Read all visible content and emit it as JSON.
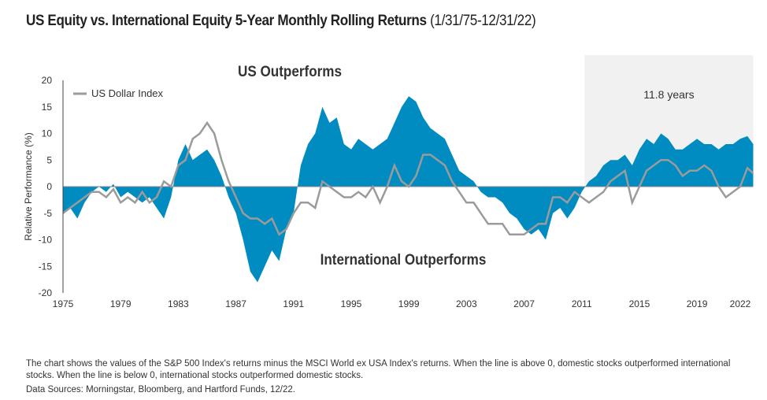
{
  "title": "US Equity vs. International Equity 5-Year Monthly Rolling Returns",
  "title_range": "(1/31/75-12/31/22)",
  "footnote": "The chart shows the values of the S&P 500 Index's returns minus the MSCI World ex USA Index's returns. When the line is above 0, domestic stocks outperformed international stocks. When the line is below 0, international stocks outperformed domestic stocks.",
  "sources": "Data Sources: Morningstar, Bloomberg, and Hartford Funds, 12/22.",
  "chart_data": {
    "type": "area",
    "ylabel": "Relative Performance (%)",
    "xlabel": "",
    "ylim": [
      -20,
      20
    ],
    "xlim": [
      1975,
      2022
    ],
    "yticks": [
      "20",
      "15",
      "10",
      "5",
      "0",
      "-5",
      "-10",
      "-15",
      "-20"
    ],
    "xticks": [
      "1975",
      "1979",
      "1983",
      "1987",
      "1991",
      "1995",
      "1999",
      "2003",
      "2007",
      "2011",
      "2015",
      "2019",
      "2022"
    ],
    "grid": false,
    "legend_position": "top-left",
    "annotations": {
      "top": "US Outperforms",
      "bottom": "International Outperforms",
      "shaded": "11.8 years"
    },
    "shaded_range": [
      2011.2,
      2022.9
    ],
    "colors": {
      "area": "#008bc1",
      "line": "#9b9b9b",
      "shade": "#f1f1f1"
    },
    "x": [
      1975,
      1975.5,
      1976,
      1976.5,
      1977,
      1977.5,
      1978,
      1978.5,
      1979,
      1979.5,
      1980,
      1980.5,
      1981,
      1981.5,
      1982,
      1982.5,
      1983,
      1983.5,
      1984,
      1984.5,
      1985,
      1985.5,
      1986,
      1986.5,
      1987,
      1987.5,
      1988,
      1988.5,
      1989,
      1989.5,
      1990,
      1990.5,
      1991,
      1991.5,
      1992,
      1992.5,
      1993,
      1993.5,
      1994,
      1994.5,
      1995,
      1995.5,
      1996,
      1996.5,
      1997,
      1997.5,
      1998,
      1998.5,
      1999,
      1999.5,
      2000,
      2000.5,
      2001,
      2001.5,
      2002,
      2002.5,
      2003,
      2003.5,
      2004,
      2004.5,
      2005,
      2005.5,
      2006,
      2006.5,
      2007,
      2007.5,
      2008,
      2008.5,
      2009,
      2009.5,
      2010,
      2010.5,
      2011,
      2011.5,
      2012,
      2012.5,
      2013,
      2013.5,
      2014,
      2014.5,
      2015,
      2015.5,
      2016,
      2016.5,
      2017,
      2017.5,
      2018,
      2018.5,
      2019,
      2019.5,
      2020,
      2020.5,
      2021,
      2021.5,
      2022,
      2022.5,
      2022.9
    ],
    "series": [
      {
        "values": [
          -5,
          -4,
          -6,
          -3,
          -1,
          0,
          -1,
          0.5,
          -2,
          -1,
          -2,
          -3,
          -2,
          -4,
          -6,
          -2,
          5,
          8,
          5,
          6,
          7,
          5,
          2,
          -2,
          -5,
          -10,
          -16,
          -18,
          -15,
          -12,
          -14,
          -8,
          -5,
          4,
          8,
          10,
          15,
          12,
          13,
          8,
          7,
          9,
          8,
          7,
          8,
          9,
          12,
          15,
          17,
          16,
          13,
          11,
          10,
          9,
          6,
          3,
          2,
          1,
          -1,
          -2,
          -2,
          -3,
          -5,
          -6,
          -8,
          -9,
          -8,
          -10,
          -5,
          -4,
          -6,
          -4,
          -1,
          1,
          2,
          4,
          5,
          5,
          6,
          4,
          7,
          9,
          8,
          10,
          9,
          7,
          7,
          8,
          9,
          8,
          8,
          7,
          8,
          8,
          9,
          9.5,
          8
        ]
      },
      {
        "name": "US Dollar Index",
        "values": [
          -5,
          -4,
          -3,
          -2,
          -1,
          -1,
          -2,
          -0.5,
          -3,
          -2,
          -3,
          -1,
          -3,
          -2,
          1,
          0,
          4,
          5,
          9,
          10,
          12,
          10,
          5,
          1,
          -2,
          -5,
          -6,
          -6,
          -7,
          -6,
          -9,
          -8,
          -5,
          -3,
          -3,
          -4,
          1,
          0,
          -1,
          -2,
          -2,
          -1,
          -2,
          0,
          -3,
          0,
          4,
          1,
          0,
          2,
          6,
          6,
          5,
          4,
          1,
          -1,
          -3,
          -3,
          -5,
          -7,
          -7,
          -7,
          -9,
          -9,
          -9,
          -8,
          -7,
          -7,
          -2,
          -2,
          -3,
          -1,
          -2,
          -3,
          -2,
          -1,
          1,
          2,
          3,
          -3,
          0,
          3,
          4,
          5,
          5,
          4,
          2,
          3,
          3,
          4,
          3,
          0,
          -2,
          -1,
          0,
          3.5,
          2.5
        ]
      }
    ]
  }
}
